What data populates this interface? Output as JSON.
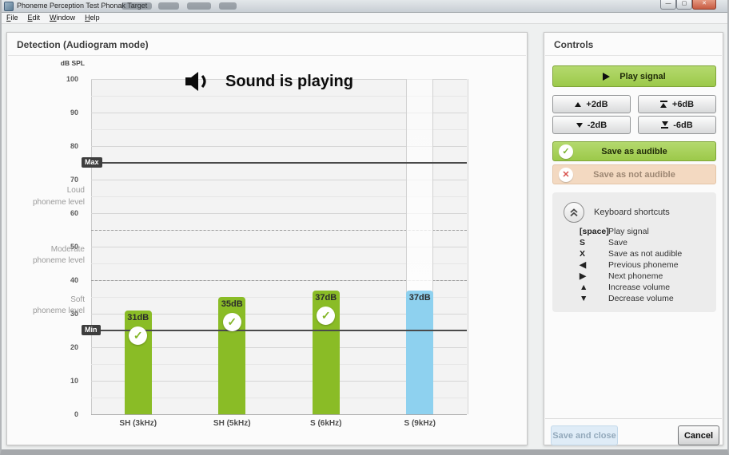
{
  "window": {
    "title": "Phoneme Perception Test Phonak  Target",
    "menu": [
      "File",
      "Edit",
      "Window",
      "Help"
    ],
    "controls": {
      "minimize": "—",
      "maximize": "▢",
      "close": "✕"
    }
  },
  "detection": {
    "title": "Detection (Audiogram mode)",
    "axis_unit": "dB SPL"
  },
  "banner": {
    "icon": "speaker-icon",
    "text": "Sound is playing",
    "color": "#8fd1f0"
  },
  "chart_data": {
    "type": "bar",
    "title": "Detection (Audiogram mode)",
    "ylabel": "dB SPL",
    "ylim": [
      0,
      100
    ],
    "ticks": [
      100,
      90,
      80,
      70,
      60,
      50,
      40,
      30,
      20,
      10,
      0
    ],
    "minor_grid_step": 5,
    "categories": [
      "SH (3kHz)",
      "SH (5kHz)",
      "S (6kHz)",
      "S (9kHz)"
    ],
    "series": [
      {
        "name": "Phoneme level",
        "values": [
          31,
          35,
          37,
          37
        ]
      }
    ],
    "bar_labels": [
      "31dB",
      "35dB",
      "37dB",
      "37dB"
    ],
    "bar_colors": [
      "#8abc26",
      "#8abc26",
      "#8abc26",
      "#8ed1ef"
    ],
    "saved_audible": [
      true,
      true,
      true,
      false
    ],
    "active_index": 3,
    "max_line": {
      "label": "Max",
      "value": 75
    },
    "min_line": {
      "label": "Min",
      "value": 25
    },
    "dashed_lines": [
      55,
      40
    ],
    "level_labels": [
      {
        "text": "Loud phoneme level",
        "center_db": 65
      },
      {
        "text": "Moderate phoneme level",
        "center_db": 47.5
      },
      {
        "text": "Soft phoneme level",
        "center_db": 32.5
      }
    ],
    "check_color": "#84b629"
  },
  "controls": {
    "title": "Controls",
    "play_label": "Play signal",
    "volume_buttons": [
      {
        "label": "+2dB",
        "icon": "arrow-up-icon"
      },
      {
        "label": "+6dB",
        "icon": "arrow-up-bar-icon"
      },
      {
        "label": "-2dB",
        "icon": "arrow-down-icon"
      },
      {
        "label": "-6dB",
        "icon": "arrow-down-bar-icon"
      }
    ],
    "save_audible_label": "Save as audible",
    "save_not_audible_label": "Save as not audible",
    "shortcuts": {
      "title": "Keyboard shortcuts",
      "items": [
        {
          "key": "[space]",
          "action": "Play signal"
        },
        {
          "key": "S",
          "action": "Save"
        },
        {
          "key": "X",
          "action": "Save as not audible"
        },
        {
          "key": "◀",
          "action": "Previous phoneme"
        },
        {
          "key": "▶",
          "action": "Next phoneme"
        },
        {
          "key": "▲",
          "action": "Increase volume"
        },
        {
          "key": "▼",
          "action": "Decrease volume"
        }
      ]
    }
  },
  "footer": {
    "save_and_close": "Save and close",
    "cancel": "Cancel"
  }
}
